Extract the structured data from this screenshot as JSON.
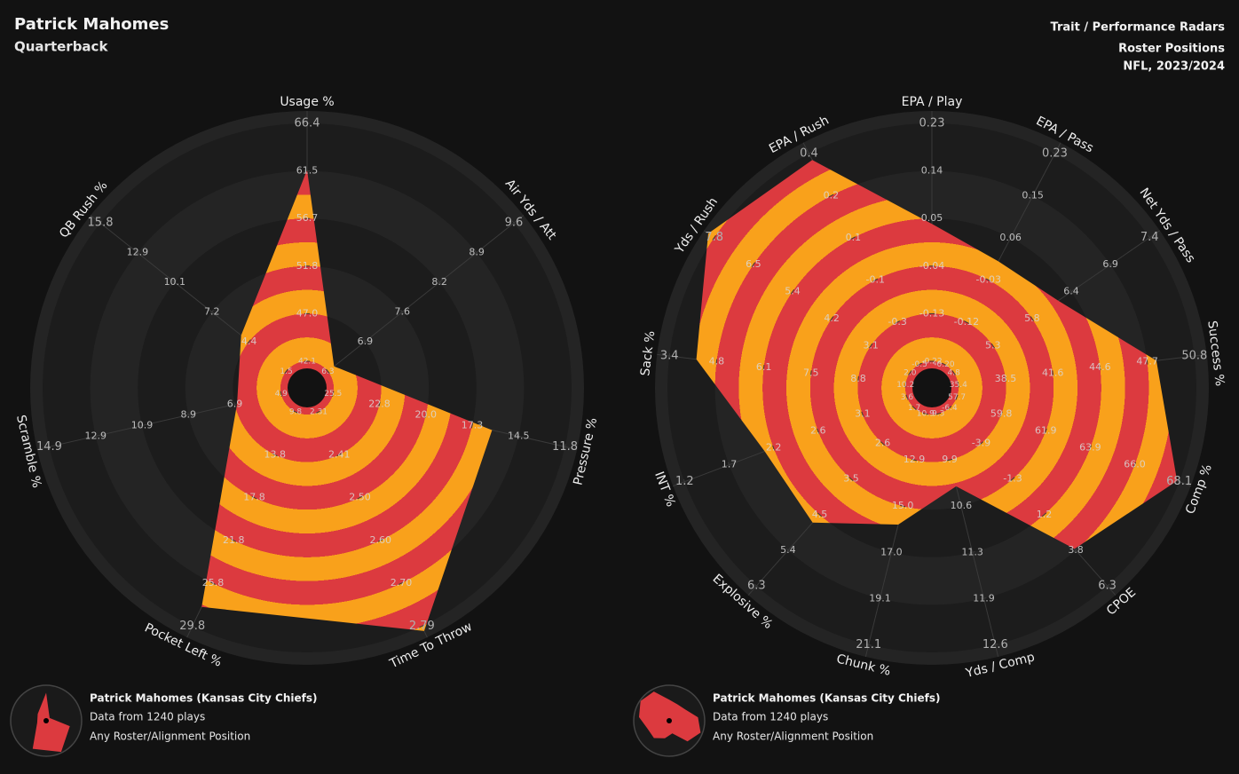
{
  "header": {
    "title": "Patrick Mahomes",
    "subtitle": "Quarterback",
    "right_lines": [
      "Trait / Performance Radars",
      "Roster Positions",
      "NFL, 2023/2024"
    ]
  },
  "chart_data": [
    {
      "type": "radar",
      "colors": [
        "#f9a11b",
        "#dc3a3f"
      ],
      "categories": [
        "Usage %",
        "Air Yds / Att",
        "Pressure %",
        "Time To Throw",
        "Pocket Left %",
        "Scramble %",
        "QB Rush %"
      ],
      "values": [
        61.6,
        6.4,
        16.1,
        2.8,
        28.0,
        6.8,
        5.0
      ],
      "ticks": [
        [
          42.1,
          {
            "value": 47,
            "label": "47.0"
          },
          51.8,
          56.7,
          61.5,
          66.4
        ],
        [
          6.3,
          6.9,
          7.6,
          8.2,
          8.9,
          9.6
        ],
        [
          25.5,
          22.8,
          {
            "value": 20,
            "label": "20.0"
          },
          17.3,
          14.5,
          11.8
        ],
        [
          2.31,
          2.41,
          {
            "value": 2.5,
            "label": "2.50"
          },
          {
            "value": 2.6,
            "label": "2.60"
          },
          {
            "value": 2.7,
            "label": "2.70"
          },
          2.79
        ],
        [
          9.8,
          13.8,
          17.8,
          21.8,
          25.8,
          29.8
        ],
        [
          4.9,
          6.9,
          8.9,
          10.9,
          12.9,
          14.9
        ],
        [
          1.5,
          4.4,
          7.2,
          10.1,
          12.9,
          15.8
        ]
      ],
      "legend": {
        "title": "Patrick Mahomes (Kansas City Chiefs)",
        "lines": [
          "Data from 1240 plays",
          "Any Roster/Alignment Position"
        ]
      }
    },
    {
      "type": "radar",
      "colors": [
        "#f9a11b",
        "#dc3a3f"
      ],
      "categories": [
        "EPA / Play",
        "EPA / Pass",
        "Net Yds / Pass",
        "Success %",
        "Comp %",
        "CPOE",
        "Yds / Comp",
        "Chunk %",
        "Explosive %",
        "INT %",
        "Sack %",
        "Yds / Rush",
        "EPA / Rush"
      ],
      "values": [
        0.04,
        0.01,
        6.2,
        48.3,
        68.0,
        3.7,
        10.3,
        15.8,
        4.7,
        2.1,
        4.2,
        8.0,
        0.37
      ],
      "ticks": [
        [
          -0.22,
          -0.13,
          -0.04,
          0.05,
          0.14,
          0.23
        ],
        [
          {
            "value": -0.2,
            "label": "-0.20"
          },
          -0.12,
          -0.03,
          0.06,
          0.15,
          0.23
        ],
        [
          4.8,
          5.3,
          5.8,
          6.4,
          6.9,
          7.4
        ],
        [
          35.4,
          38.5,
          41.6,
          44.6,
          47.7,
          50.8
        ],
        [
          57.7,
          59.8,
          61.9,
          63.9,
          {
            "value": 66,
            "label": "66.0"
          },
          68.1
        ],
        [
          -6.4,
          -3.9,
          -1.3,
          1.2,
          3.8,
          6.3
        ],
        [
          9.3,
          9.9,
          10.6,
          11.3,
          11.9,
          12.6
        ],
        [
          10.9,
          12.9,
          {
            "value": 15,
            "label": "15.0"
          },
          {
            "value": 17,
            "label": "17.0"
          },
          19.1,
          21.1
        ],
        [
          1.7,
          2.6,
          3.5,
          4.5,
          5.4,
          6.3
        ],
        [
          3.6,
          3.1,
          2.6,
          2.2,
          1.7,
          1.2
        ],
        [
          10.2,
          8.8,
          7.5,
          6.1,
          4.8,
          3.4
        ],
        [
          {
            "value": 2,
            "label": "2.0"
          },
          3.1,
          4.2,
          5.4,
          6.5,
          7.8
        ],
        [
          -0.5,
          -0.3,
          -0.1,
          0.1,
          0.2,
          0.4
        ]
      ],
      "legend": {
        "title": "Patrick Mahomes (Kansas City Chiefs)",
        "lines": [
          "Data from 1240 plays",
          "Any Roster/Alignment Position"
        ]
      }
    }
  ]
}
